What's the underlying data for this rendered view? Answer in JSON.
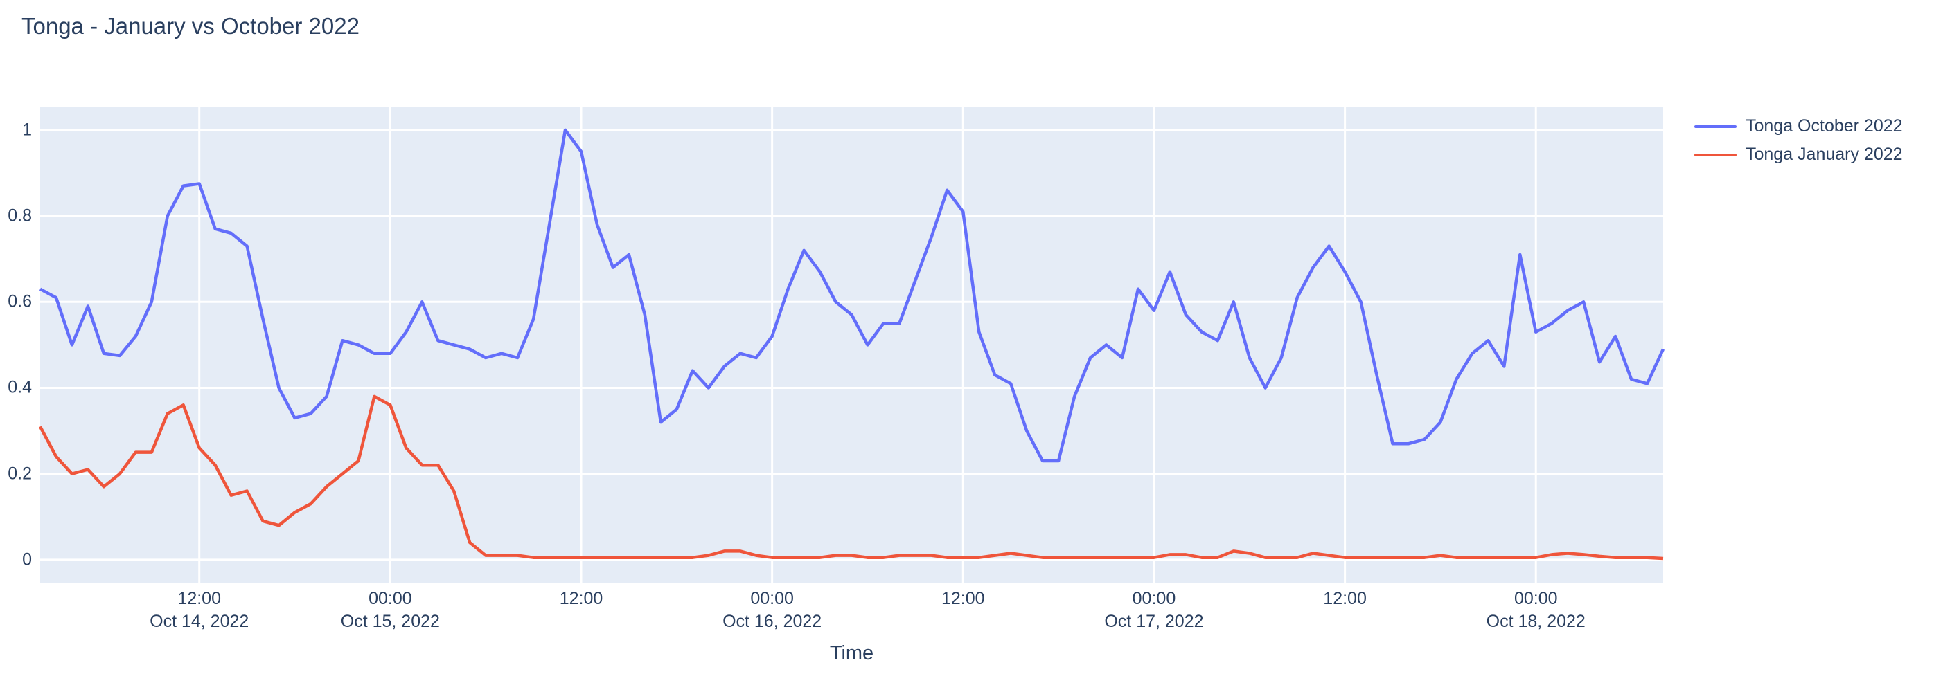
{
  "title": {
    "text": "Tonga - January vs October 2022"
  },
  "axes": {
    "x_title": "Time",
    "y_ticks": [
      {
        "label": "0",
        "value": 0
      },
      {
        "label": "0.2",
        "value": 0.2
      },
      {
        "label": "0.4",
        "value": 0.4
      },
      {
        "label": "0.6",
        "value": 0.6
      },
      {
        "label": "0.8",
        "value": 0.8
      },
      {
        "label": "1",
        "value": 1
      }
    ],
    "x_ticks": [
      {
        "time": "12:00",
        "date": "Oct 14, 2022",
        "hour": 12
      },
      {
        "time": "00:00",
        "date": "Oct 15, 2022",
        "hour": 24
      },
      {
        "time": "12:00",
        "date": "",
        "hour": 36
      },
      {
        "time": "00:00",
        "date": "Oct 16, 2022",
        "hour": 48
      },
      {
        "time": "12:00",
        "date": "",
        "hour": 60
      },
      {
        "time": "00:00",
        "date": "Oct 17, 2022",
        "hour": 72
      },
      {
        "time": "12:00",
        "date": "",
        "hour": 84
      },
      {
        "time": "00:00",
        "date": "Oct 18, 2022",
        "hour": 96
      }
    ]
  },
  "legend": {
    "items": [
      {
        "label": "Tonga October 2022",
        "color": "#636EFA"
      },
      {
        "label": "Tonga January 2022",
        "color": "#EF553B"
      }
    ]
  },
  "colors": {
    "page_bg": "#FFFFFF",
    "plot_bg": "#E5ECF6",
    "grid": "#FFFFFF",
    "text": "#2A3F5F",
    "series_blue": "#636EFA",
    "series_red": "#EF553B"
  },
  "chart_data": {
    "type": "line",
    "title": "Tonga - January vs October 2022",
    "xlabel": "Time",
    "ylabel": "",
    "grid": true,
    "legend_position": "top-right",
    "x_unit": "hours since Oct 14 2022 00:00, hourly samples",
    "x_start_hour": 2,
    "x_step_hours": 1,
    "x_axis_range_hours": [
      2,
      104
    ],
    "x_tick_hours": [
      12,
      24,
      36,
      48,
      60,
      72,
      84,
      96
    ],
    "ylim": [
      -0.055,
      1.053
    ],
    "series": [
      {
        "name": "Tonga October 2022",
        "color": "#636EFA",
        "values": [
          0.63,
          0.61,
          0.5,
          0.59,
          0.48,
          0.475,
          0.52,
          0.6,
          0.8,
          0.87,
          0.875,
          0.77,
          0.76,
          0.73,
          0.56,
          0.4,
          0.33,
          0.34,
          0.38,
          0.51,
          0.5,
          0.48,
          0.48,
          0.53,
          0.6,
          0.51,
          0.5,
          0.49,
          0.47,
          0.48,
          0.47,
          0.56,
          0.78,
          1.0,
          0.95,
          0.78,
          0.68,
          0.71,
          0.57,
          0.32,
          0.35,
          0.44,
          0.4,
          0.45,
          0.48,
          0.47,
          0.52,
          0.63,
          0.72,
          0.67,
          0.6,
          0.57,
          0.5,
          0.55,
          0.55,
          0.65,
          0.75,
          0.86,
          0.81,
          0.53,
          0.43,
          0.41,
          0.3,
          0.23,
          0.23,
          0.38,
          0.47,
          0.5,
          0.47,
          0.63,
          0.58,
          0.67,
          0.57,
          0.53,
          0.51,
          0.6,
          0.47,
          0.4,
          0.47,
          0.61,
          0.68,
          0.73,
          0.67,
          0.6,
          0.43,
          0.27,
          0.27,
          0.28,
          0.32,
          0.42,
          0.48,
          0.51,
          0.45,
          0.71,
          0.53,
          0.55,
          0.58,
          0.6,
          0.46,
          0.52,
          0.42,
          0.41,
          0.49
        ]
      },
      {
        "name": "Tonga January 2022",
        "color": "#EF553B",
        "values": [
          0.31,
          0.24,
          0.2,
          0.21,
          0.17,
          0.2,
          0.25,
          0.25,
          0.34,
          0.36,
          0.26,
          0.22,
          0.15,
          0.16,
          0.09,
          0.08,
          0.11,
          0.13,
          0.17,
          0.2,
          0.23,
          0.38,
          0.36,
          0.26,
          0.22,
          0.22,
          0.16,
          0.04,
          0.01,
          0.01,
          0.01,
          0.005,
          0.005,
          0.005,
          0.005,
          0.005,
          0.005,
          0.005,
          0.005,
          0.005,
          0.005,
          0.005,
          0.01,
          0.02,
          0.02,
          0.01,
          0.005,
          0.005,
          0.005,
          0.005,
          0.01,
          0.01,
          0.005,
          0.005,
          0.01,
          0.01,
          0.01,
          0.005,
          0.005,
          0.005,
          0.01,
          0.015,
          0.01,
          0.005,
          0.005,
          0.005,
          0.005,
          0.005,
          0.005,
          0.005,
          0.005,
          0.012,
          0.012,
          0.005,
          0.005,
          0.02,
          0.015,
          0.005,
          0.005,
          0.005,
          0.015,
          0.01,
          0.005,
          0.005,
          0.005,
          0.005,
          0.005,
          0.005,
          0.01,
          0.005,
          0.005,
          0.005,
          0.005,
          0.005,
          0.005,
          0.012,
          0.015,
          0.012,
          0.008,
          0.005,
          0.005,
          0.005,
          0.003
        ]
      }
    ]
  }
}
